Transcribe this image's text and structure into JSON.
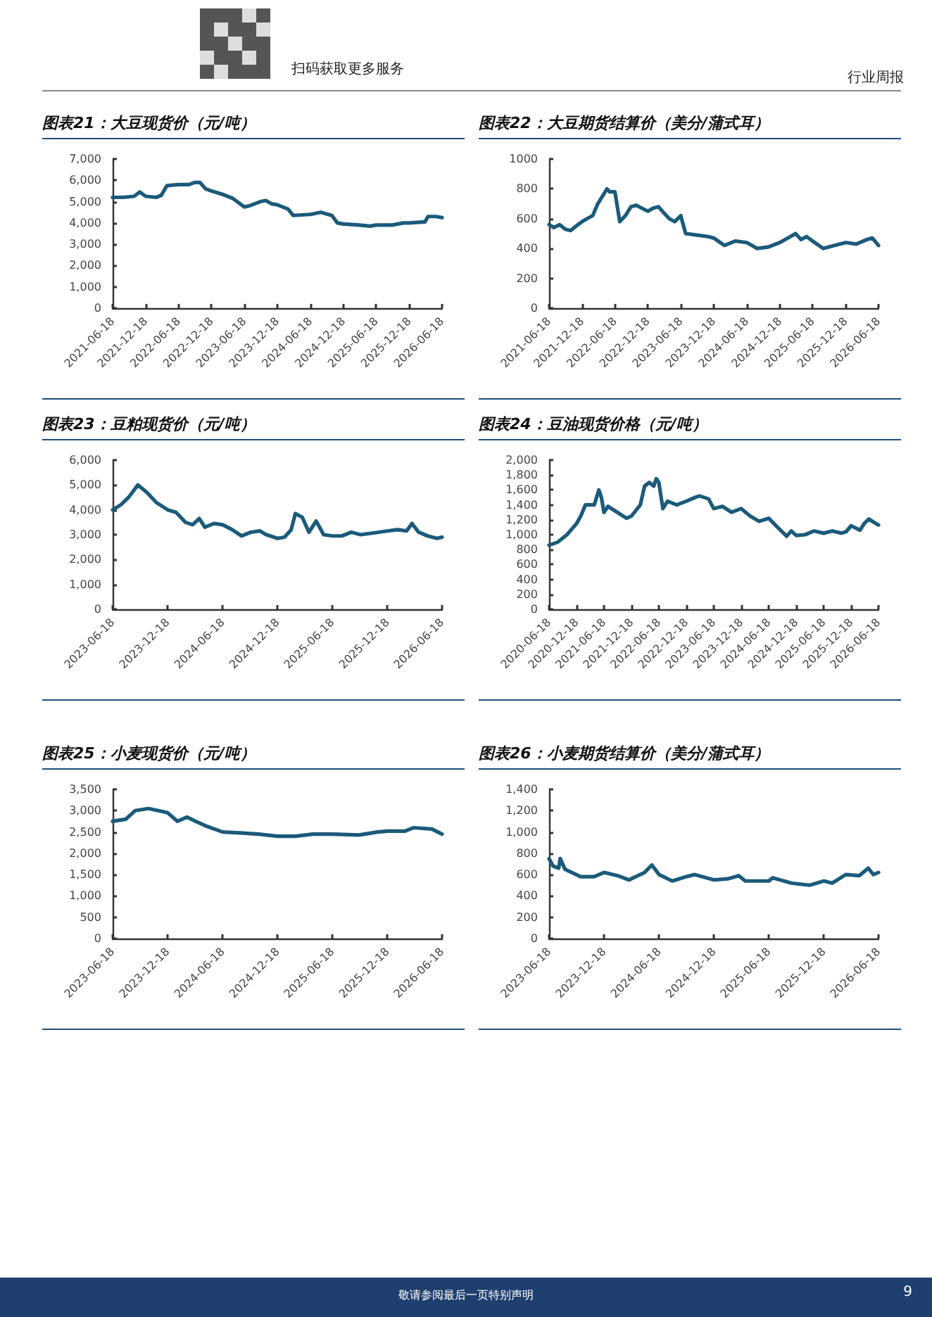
{
  "chart_data": [
    {
      "type": "line",
      "title": "图表21：大豆现货价（元/吨）",
      "color": "#1b5a7a",
      "line_style": "solid",
      "x": [
        "2021-06-18",
        "2021-08-15",
        "2021-10-15",
        "2021-11-15",
        "2021-12-18",
        "2022-02-15",
        "2022-03-15",
        "2022-04-15",
        "2022-06-18",
        "2022-08-15",
        "2022-09-15",
        "2022-10-15",
        "2022-11-15",
        "2022-12-18",
        "2023-02-15",
        "2023-04-15",
        "2023-06-18",
        "2023-07-15",
        "2023-09-15",
        "2023-10-15",
        "2023-11-15",
        "2023-12-18",
        "2024-02-15",
        "2024-03-15",
        "2024-06-18",
        "2024-08-15",
        "2024-10-15",
        "2024-11-15",
        "2024-12-18",
        "2025-03-15",
        "2025-05-15",
        "2025-06-18",
        "2025-09-15",
        "2025-11-15",
        "2025-12-18",
        "2026-03-15",
        "2026-04-01",
        "2026-05-15",
        "2026-06-18"
      ],
      "values": [
        5200,
        5200,
        5250,
        5450,
        5250,
        5200,
        5300,
        5750,
        5800,
        5800,
        5900,
        5900,
        5600,
        5500,
        5350,
        5150,
        4750,
        4800,
        5000,
        5050,
        4900,
        4850,
        4650,
        4350,
        4400,
        4500,
        4350,
        4000,
        3950,
        3900,
        3850,
        3900,
        3900,
        4000,
        4000,
        4050,
        4300,
        4300,
        4250
      ],
      "xlim": [
        "2021-06-18",
        "2026-06-18"
      ],
      "xticks": [
        "2021-06-18",
        "2021-12-18",
        "2022-06-18",
        "2022-12-18",
        "2023-06-18",
        "2023-12-18",
        "2024-06-18",
        "2024-12-18",
        "2025-06-18",
        "2025-12-18",
        "2026-06-18"
      ],
      "ylim": [
        0,
        7000
      ],
      "yticks": [
        0,
        {
          "value": 1000,
          "label": "1,000"
        },
        {
          "value": 2000,
          "label": "2,000"
        },
        {
          "value": 3000,
          "label": "3,000"
        },
        {
          "value": 4000,
          "label": "4,000"
        },
        {
          "value": 5000,
          "label": "5,000"
        },
        {
          "value": 6000,
          "label": "6,000"
        },
        {
          "value": 7000,
          "label": "7,000"
        }
      ]
    },
    {
      "type": "line",
      "title": "图表22：大豆期货结算价（美分/蒲式耳）",
      "color": "#1b5a7a",
      "line_style": "solid",
      "x": [
        "2021-06-18",
        "2021-07-15",
        "2021-08-15",
        "2021-09-15",
        "2021-10-15",
        "2021-11-15",
        "2021-12-18",
        "2022-01-15",
        "2022-02-15",
        "2022-03-15",
        "2022-04-15",
        "2022-05-05",
        "2022-05-20",
        "2022-06-18",
        "2022-07-15",
        "2022-08-15",
        "2022-09-15",
        "2022-10-15",
        "2022-11-15",
        "2022-12-18",
        "2023-01-15",
        "2023-02-15",
        "2023-03-15",
        "2023-04-15",
        "2023-05-15",
        "2023-06-18",
        "2023-07-15",
        "2023-09-15",
        "2023-11-15",
        "2023-12-18",
        "2024-02-15",
        "2024-04-15",
        "2024-06-18",
        "2024-08-15",
        "2024-10-15",
        "2024-12-18",
        "2025-02-15",
        "2025-03-15",
        "2025-04-15",
        "2025-05-15",
        "2025-06-18",
        "2025-08-15",
        "2025-10-15",
        "2025-12-18",
        "2026-02-15",
        "2026-04-15",
        "2026-05-15",
        "2026-06-18"
      ],
      "values": [
        560,
        540,
        560,
        530,
        520,
        550,
        580,
        600,
        620,
        700,
        760,
        800,
        780,
        780,
        580,
        620,
        680,
        690,
        670,
        650,
        670,
        680,
        640,
        600,
        580,
        620,
        500,
        490,
        480,
        470,
        420,
        450,
        440,
        400,
        410,
        440,
        480,
        500,
        460,
        480,
        450,
        400,
        420,
        440,
        430,
        460,
        470,
        420
      ],
      "xlim": [
        "2021-06-18",
        "2026-06-18"
      ],
      "xticks": [
        "2021-06-18",
        "2021-12-18",
        "2022-06-18",
        "2022-12-18",
        "2023-06-18",
        "2023-12-18",
        "2024-06-18",
        "2024-12-18",
        "2025-06-18",
        "2025-12-18",
        "2026-06-18"
      ],
      "ylim": [
        0,
        1000
      ],
      "yticks": [
        0,
        200,
        400,
        600,
        800,
        1000
      ]
    },
    {
      "type": "line",
      "title": "图表23：豆粕现货价（元/吨）",
      "color": "#1b5a7a",
      "line_style": "solid",
      "x": [
        "2023-06-18",
        "2023-07-15",
        "2023-08-10",
        "2023-09-10",
        "2023-10-10",
        "2023-11-10",
        "2023-12-18",
        "2024-01-15",
        "2024-02-15",
        "2024-03-10",
        "2024-04-01",
        "2024-04-20",
        "2024-05-20",
        "2024-06-18",
        "2024-07-20",
        "2024-08-20",
        "2024-09-20",
        "2024-10-20",
        "2024-11-10",
        "2024-12-18",
        "2025-01-10",
        "2025-02-01",
        "2025-02-15",
        "2025-03-10",
        "2025-04-01",
        "2025-04-25",
        "2025-05-20",
        "2025-06-18",
        "2025-07-20",
        "2025-08-20",
        "2025-09-20",
        "2025-10-20",
        "2025-11-20",
        "2025-12-18",
        "2026-01-20",
        "2026-02-20",
        "2026-03-10",
        "2026-04-01",
        "2026-05-01",
        "2026-06-01",
        "2026-06-18"
      ],
      "values": [
        4000,
        4200,
        4500,
        5000,
        4700,
        4300,
        4000,
        3900,
        3500,
        3400,
        3650,
        3300,
        3450,
        3400,
        3200,
        2950,
        3100,
        3150,
        3000,
        2850,
        2900,
        3200,
        3850,
        3700,
        3100,
        3550,
        3000,
        2950,
        2950,
        3100,
        3000,
        3050,
        3100,
        3150,
        3200,
        3150,
        3450,
        3100,
        2950,
        2850,
        2900
      ],
      "xlim": [
        "2023-06-18",
        "2026-06-18"
      ],
      "xticks": [
        "2023-06-18",
        "2023-12-18",
        "2024-06-18",
        "2024-12-18",
        "2025-06-18",
        "2025-12-18",
        "2026-06-18"
      ],
      "ylim": [
        0,
        6000
      ],
      "yticks": [
        0,
        {
          "value": 1000,
          "label": "1,000"
        },
        {
          "value": 2000,
          "label": "2,000"
        },
        {
          "value": 3000,
          "label": "3,000"
        },
        {
          "value": 4000,
          "label": "4,000"
        },
        {
          "value": 5000,
          "label": "5,000"
        },
        {
          "value": 6000,
          "label": "6,000"
        }
      ]
    },
    {
      "type": "line",
      "title": "图表24：豆油现货价格（元/吨）",
      "color": "#1b5a7a",
      "line_style": "solid",
      "x": [
        "2020-06-18",
        "2020-08-15",
        "2020-10-15",
        "2020-12-18",
        "2021-01-15",
        "2021-02-15",
        "2021-04-15",
        "2021-05-15",
        "2021-06-01",
        "2021-06-18",
        "2021-07-15",
        "2021-09-15",
        "2021-11-15",
        "2021-12-18",
        "2022-02-15",
        "2022-03-15",
        "2022-04-15",
        "2022-05-15",
        "2022-06-01",
        "2022-06-18",
        "2022-07-15",
        "2022-08-15",
        "2022-10-15",
        "2022-12-18",
        "2023-02-15",
        "2023-03-15",
        "2023-05-15",
        "2023-06-18",
        "2023-08-15",
        "2023-10-15",
        "2023-12-18",
        "2024-02-15",
        "2024-04-15",
        "2024-06-18",
        "2024-08-15",
        "2024-10-15",
        "2024-11-15",
        "2024-12-18",
        "2025-02-15",
        "2025-04-15",
        "2025-06-18",
        "2025-08-15",
        "2025-10-15",
        "2025-11-15",
        "2025-12-18",
        "2026-02-15",
        "2026-03-15",
        "2026-04-15",
        "2026-05-15",
        "2026-06-18"
      ],
      "values": [
        860,
        900,
        1000,
        1150,
        1250,
        1400,
        1400,
        1600,
        1500,
        1300,
        1380,
        1300,
        1220,
        1250,
        1400,
        1650,
        1700,
        1650,
        1750,
        1700,
        1350,
        1450,
        1400,
        1450,
        1500,
        1520,
        1480,
        1350,
        1380,
        1300,
        1350,
        1250,
        1180,
        1220,
        1100,
        980,
        1050,
        990,
        1000,
        1050,
        1020,
        1050,
        1020,
        1040,
        1120,
        1060,
        1150,
        1210,
        1170,
        1130
      ],
      "xlim": [
        "2020-06-18",
        "2026-06-18"
      ],
      "xticks": [
        "2020-06-18",
        "2020-12-18",
        "2021-06-18",
        "2021-12-18",
        "2022-06-18",
        "2022-12-18",
        "2023-06-18",
        "2023-12-18",
        "2024-06-18",
        "2024-12-18",
        "2025-06-18",
        "2025-12-18",
        "2026-06-18"
      ],
      "ylim": [
        0,
        2000
      ],
      "yticks": [
        0,
        200,
        400,
        600,
        800,
        {
          "value": 1000,
          "label": "1,000"
        },
        {
          "value": 1200,
          "label": "1,200"
        },
        {
          "value": 1400,
          "label": "1,400"
        },
        {
          "value": 1600,
          "label": "1,600"
        },
        {
          "value": 1800,
          "label": "1,800"
        },
        {
          "value": 2000,
          "label": "2,000"
        }
      ]
    },
    {
      "type": "line",
      "title": "图表25：小麦现货价（元/吨）",
      "color": "#1b5a7a",
      "line_style": "solid",
      "x": [
        "2023-06-18",
        "2023-08-01",
        "2023-09-01",
        "2023-10-15",
        "2023-12-01",
        "2023-12-18",
        "2024-01-20",
        "2024-02-20",
        "2024-03-20",
        "2024-04-20",
        "2024-06-18",
        "2024-08-15",
        "2024-10-15",
        "2024-12-18",
        "2025-02-15",
        "2025-04-15",
        "2025-06-18",
        "2025-09-15",
        "2025-11-15",
        "2025-12-18",
        "2026-02-15",
        "2026-03-15",
        "2026-05-15",
        "2026-06-18"
      ],
      "values": [
        2750,
        2800,
        3000,
        3050,
        2980,
        2950,
        2750,
        2850,
        2750,
        2650,
        2500,
        2480,
        2450,
        2400,
        2400,
        2450,
        2450,
        2430,
        2500,
        2520,
        2520,
        2600,
        2570,
        2450
      ],
      "xlim": [
        "2023-06-18",
        "2026-06-18"
      ],
      "xticks": [
        "2023-06-18",
        "2023-12-18",
        "2024-06-18",
        "2024-12-18",
        "2025-06-18",
        "2025-12-18",
        "2026-06-18"
      ],
      "ylim": [
        0,
        3500
      ],
      "yticks": [
        0,
        500,
        {
          "value": 1000,
          "label": "1,000"
        },
        {
          "value": 1500,
          "label": "1,500"
        },
        {
          "value": 2000,
          "label": "2,000"
        },
        {
          "value": 2500,
          "label": "2,500"
        },
        {
          "value": 3000,
          "label": "3,000"
        },
        {
          "value": 3500,
          "label": "3,500"
        }
      ]
    },
    {
      "type": "line",
      "title": "图表26：小麦期货结算价（美分/蒲式耳）",
      "color": "#1b5a7a",
      "line_style": "solid",
      "x": [
        "2023-06-18",
        "2023-07-01",
        "2023-07-20",
        "2023-07-25",
        "2023-08-10",
        "2023-10-01",
        "2023-11-15",
        "2023-12-18",
        "2024-02-01",
        "2024-03-10",
        "2024-05-01",
        "2024-05-25",
        "2024-06-18",
        "2024-08-01",
        "2024-09-15",
        "2024-10-15",
        "2024-12-18",
        "2025-02-01",
        "2025-03-10",
        "2025-04-01",
        "2025-06-18",
        "2025-07-01",
        "2025-09-01",
        "2025-11-01",
        "2025-12-18",
        "2026-01-15",
        "2026-03-01",
        "2026-04-15",
        "2026-05-15",
        "2026-06-01",
        "2026-06-18"
      ],
      "values": [
        750,
        680,
        660,
        750,
        650,
        580,
        580,
        620,
        590,
        550,
        620,
        690,
        600,
        540,
        580,
        600,
        550,
        560,
        590,
        540,
        540,
        570,
        520,
        500,
        540,
        520,
        600,
        590,
        660,
        600,
        620
      ],
      "xlim": [
        "2023-06-18",
        "2026-06-18"
      ],
      "xticks": [
        "2023-06-18",
        "2023-12-18",
        "2024-06-18",
        "2024-12-18",
        "2025-06-18",
        "2025-12-18",
        "2026-06-18"
      ],
      "ylim": [
        0,
        1400
      ],
      "yticks": [
        0,
        200,
        400,
        600,
        800,
        {
          "value": 1000,
          "label": "1,000"
        },
        {
          "value": 1200,
          "label": "1,200"
        },
        {
          "value": 1400,
          "label": "1,400"
        }
      ]
    },
    {
      "type": "other",
      "annotations": [
        "扫码获取更多服务",
        "行业周报",
        "敬请参阅最后一页特别声明",
        "9"
      ]
    }
  ]
}
